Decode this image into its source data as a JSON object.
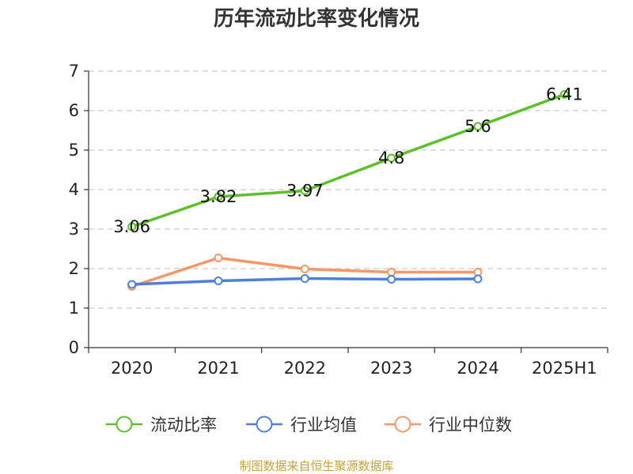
{
  "chart_data": {
    "type": "line",
    "title": "历年流动比率变化情况",
    "categories": [
      "2020",
      "2021",
      "2022",
      "2023",
      "2024",
      "2025H1"
    ],
    "series": [
      {
        "name": "流动比率",
        "color": "#5cc02a",
        "values": [
          3.06,
          3.82,
          3.97,
          4.8,
          5.6,
          6.41
        ],
        "labels": [
          "3.06",
          "3.82",
          "3.97",
          "4.8",
          "5.6",
          "6.41"
        ]
      },
      {
        "name": "行业均值",
        "color": "#4e7fdd",
        "values": [
          1.6,
          1.69,
          1.75,
          1.73,
          1.74,
          null
        ]
      },
      {
        "name": "行业中位数",
        "color": "#f59866",
        "values": [
          1.55,
          2.27,
          1.99,
          1.91,
          1.91,
          null
        ]
      }
    ],
    "ylim": [
      0,
      7
    ],
    "yticks": [
      "0",
      "1",
      "2",
      "3",
      "4",
      "5",
      "6",
      "7"
    ],
    "grid": true,
    "legend_position": "bottom"
  },
  "source_text": "制图数据来自恒生聚源数据库",
  "source_color": "#c8a13a"
}
